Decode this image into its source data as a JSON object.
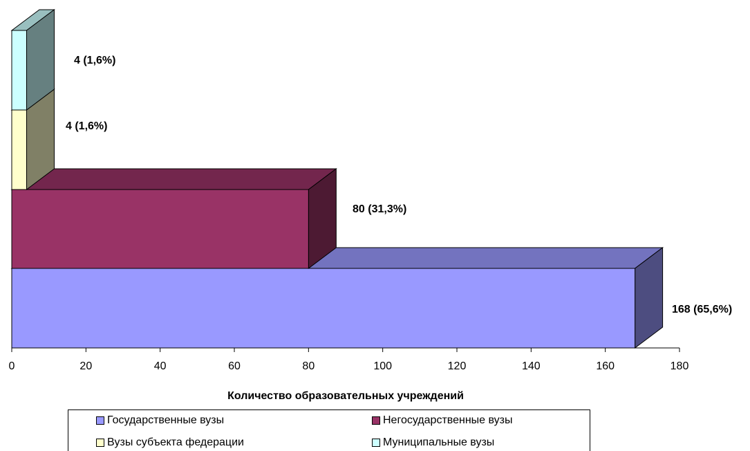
{
  "chart_data": {
    "type": "bar",
    "orientation": "horizontal",
    "stacked": true,
    "three_d": true,
    "title": "",
    "xlabel": "Количество образовательных учреждений",
    "ylabel": "",
    "xlim": [
      0,
      180
    ],
    "x_ticks": [
      "0",
      "20",
      "40",
      "60",
      "80",
      "100",
      "120",
      "140",
      "160",
      "180"
    ],
    "grid": false,
    "legend_position": "bottom",
    "series": [
      {
        "name": "Государственные вузы",
        "value": 168,
        "label": "168 (65,6%)",
        "color": "#9999ff"
      },
      {
        "name": "Негосударственные вузы",
        "value": 80,
        "label": "80 (31,3%)",
        "color": "#993366"
      },
      {
        "name": "Вузы субъекта федерации",
        "value": 4,
        "label": "4 (1,6%)",
        "color": "#ffffcc"
      },
      {
        "name": "Муниципальные вузы",
        "value": 4,
        "label": "4 (1,6%)",
        "color": "#ccffff"
      }
    ]
  },
  "legend": {
    "items": [
      "Государственные вузы",
      "Негосударственные вузы",
      "Вузы субъекта федерации",
      "Муниципальные вузы"
    ]
  }
}
